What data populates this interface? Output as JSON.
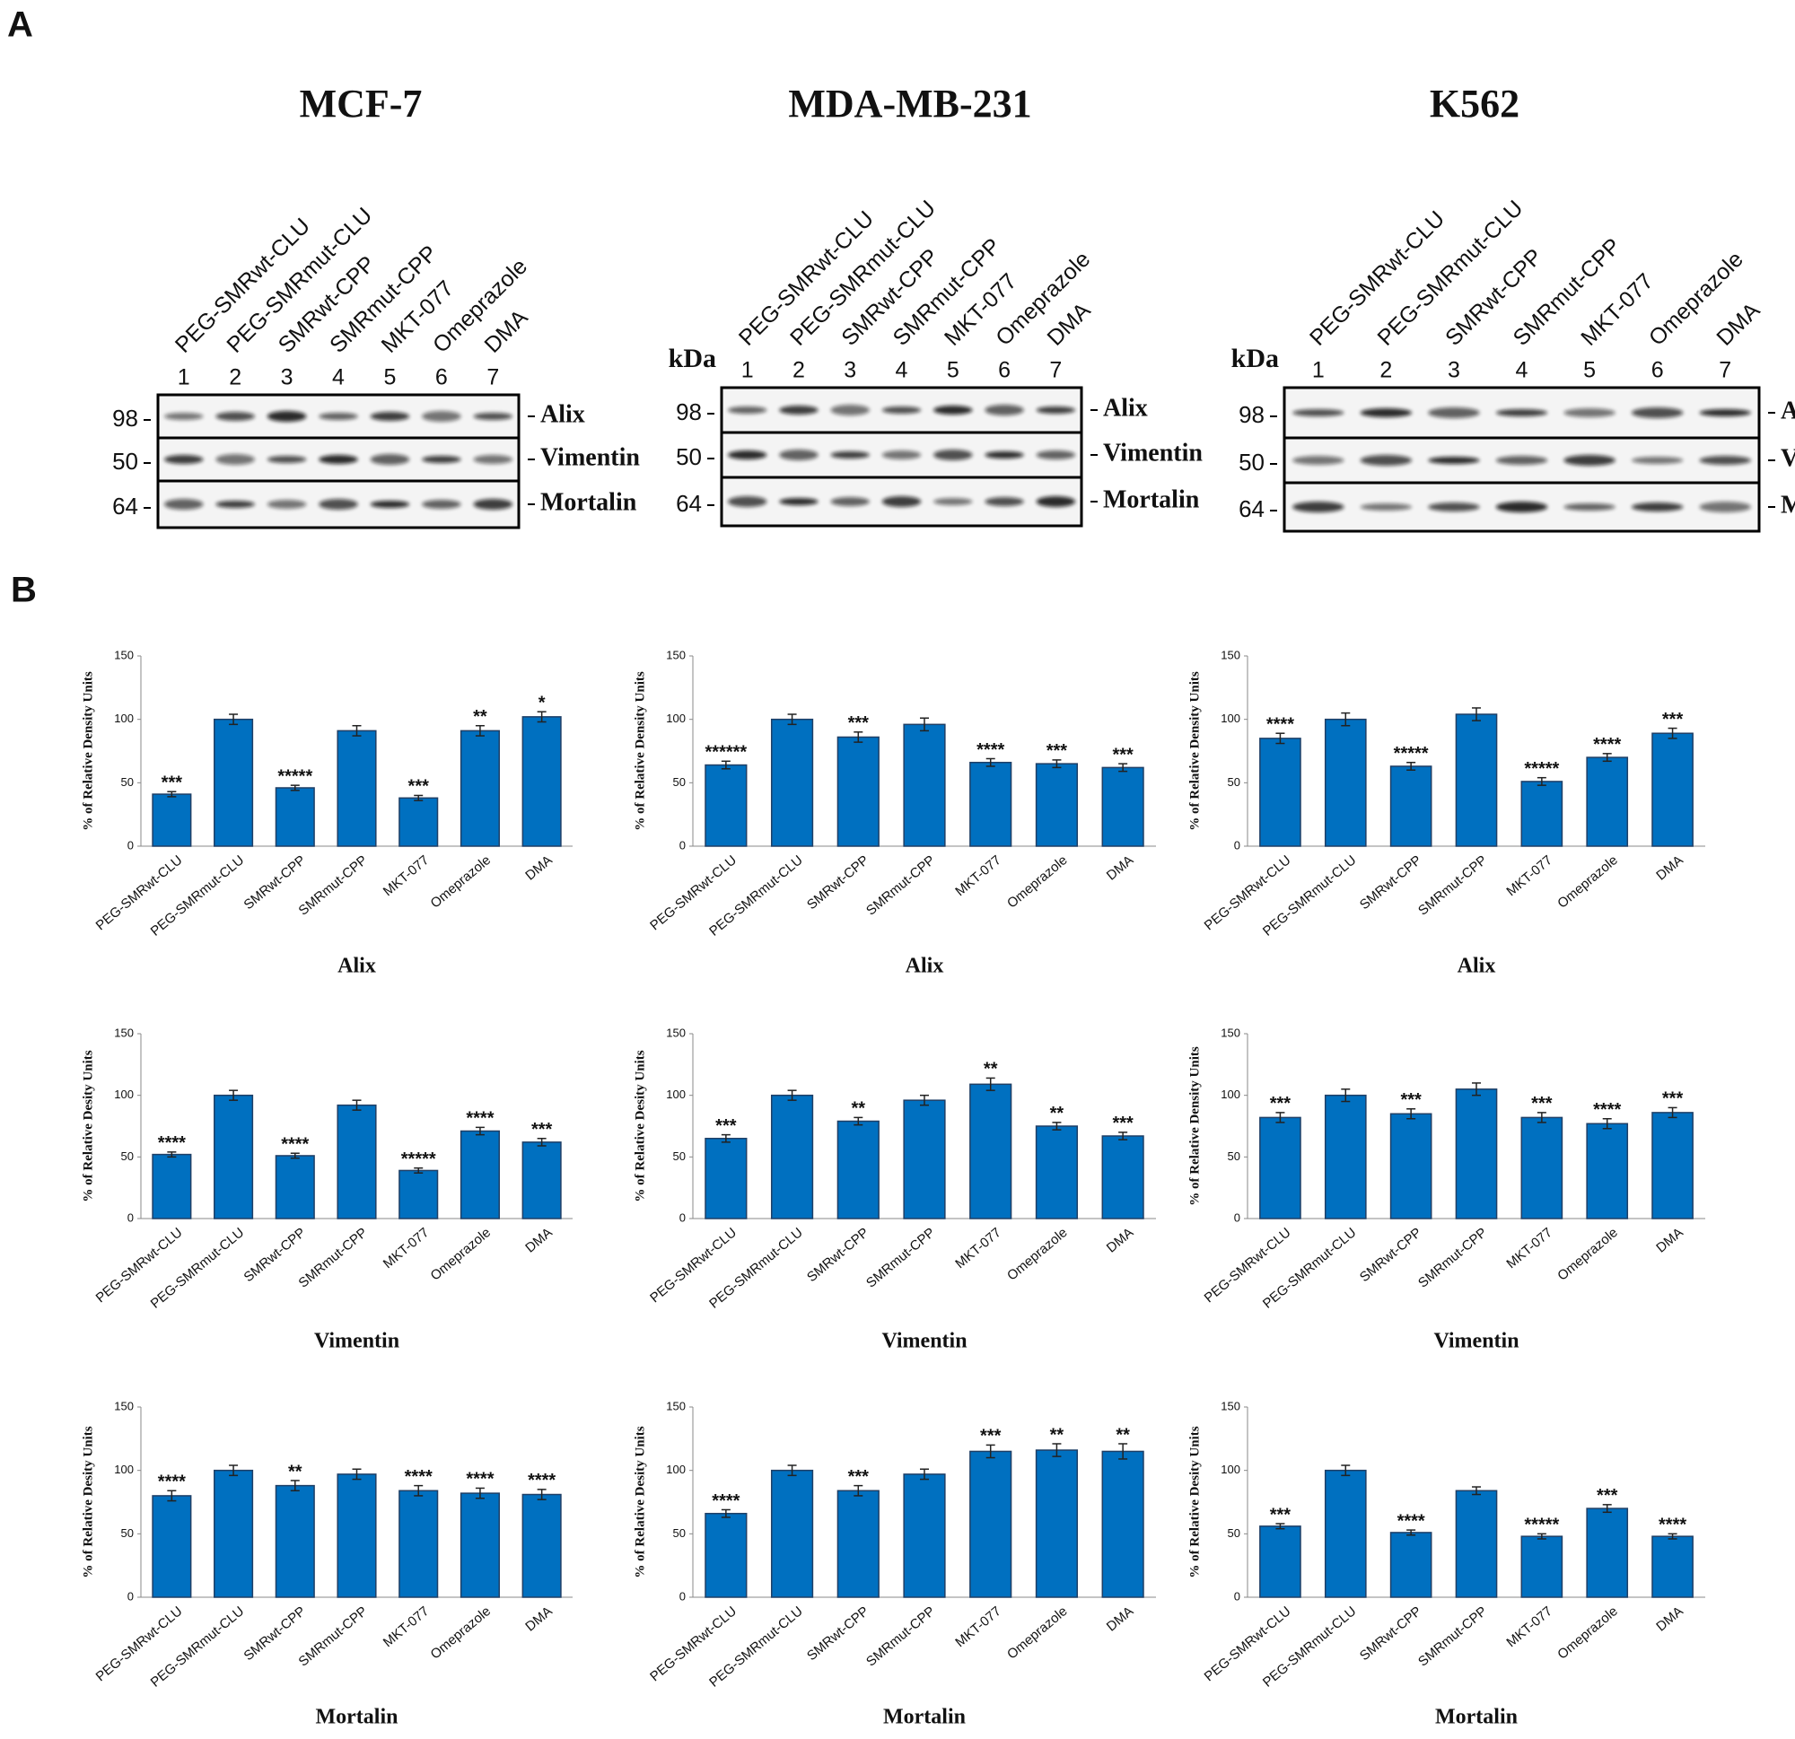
{
  "panel_a": {
    "label": "A",
    "blots": [
      {
        "title": "MCF-7",
        "lanes": [
          "PEG-SMRwt-CLU",
          "PEG-SMRmut-CLU",
          "SMRwt-CPP",
          "SMRmut-CPP",
          "MKT-077",
          "Omeprazole",
          "DMA"
        ],
        "lane_numbers": [
          1,
          2,
          3,
          4,
          5,
          6,
          7
        ],
        "proteins": [
          {
            "marker": 98,
            "name": "Alix"
          },
          {
            "marker": 50,
            "name": "Vimentin"
          },
          {
            "marker": 64,
            "name": "Mortalin"
          }
        ]
      },
      {
        "title": "MDA-MB-231",
        "kda_label": "kDa",
        "lanes": [
          "PEG-SMRwt-CLU",
          "PEG-SMRmut-CLU",
          "SMRwt-CPP",
          "SMRmut-CPP",
          "MKT-077",
          "Omeprazole",
          "DMA"
        ],
        "lane_numbers": [
          1,
          2,
          3,
          4,
          5,
          6,
          7
        ],
        "proteins": [
          {
            "marker": 98,
            "name": "Alix"
          },
          {
            "marker": 50,
            "name": "Vimentin"
          },
          {
            "marker": 64,
            "name": "Mortalin"
          }
        ]
      },
      {
        "title": "K562",
        "kda_label": "kDa",
        "lanes": [
          "PEG-SMRwt-CLU",
          "PEG-SMRmut-CLU",
          "SMRwt-CPP",
          "SMRmut-CPP",
          "MKT-077",
          "Omeprazole",
          "DMA"
        ],
        "lane_numbers": [
          1,
          2,
          3,
          4,
          5,
          6,
          7
        ],
        "proteins": [
          {
            "marker": 98,
            "name": "Alix"
          },
          {
            "marker": 50,
            "name": "Vimentin"
          },
          {
            "marker": 64,
            "name": "Mortalin"
          }
        ]
      }
    ]
  },
  "panel_b": {
    "label": "B"
  },
  "chart_data": [
    {
      "type": "bar",
      "title": "Alix",
      "ylabel": "% of Relative Density Units",
      "categories": [
        "PEG-SMRwt-CLU",
        "PEG-SMRmut-CLU",
        "SMRwt-CPP",
        "SMRmut-CPP",
        "MKT-077",
        "Omeprazole",
        "DMA"
      ],
      "values": [
        41,
        100,
        46,
        91,
        38,
        91,
        102
      ],
      "errors": [
        2,
        4,
        2,
        4,
        2,
        4,
        4
      ],
      "annotations": [
        "***",
        null,
        "*****",
        null,
        "***",
        "**",
        "*"
      ],
      "color": "#0070c0",
      "ylim": [
        0,
        150
      ],
      "yticks": [
        0,
        50,
        100,
        150
      ]
    },
    {
      "type": "bar",
      "title": "Alix",
      "ylabel": "% of Relative Density Units",
      "categories": [
        "PEG-SMRwt-CLU",
        "PEG-SMRmut-CLU",
        "SMRwt-CPP",
        "SMRmut-CPP",
        "MKT-077",
        "Omeprazole",
        "DMA"
      ],
      "values": [
        64,
        100,
        86,
        96,
        66,
        65,
        62
      ],
      "errors": [
        3,
        4,
        4,
        5,
        3,
        3,
        3
      ],
      "annotations": [
        "******",
        null,
        "***",
        null,
        "****",
        "***",
        "***"
      ],
      "color": "#0070c0",
      "ylim": [
        0,
        150
      ],
      "yticks": [
        0,
        50,
        100,
        150
      ]
    },
    {
      "type": "bar",
      "title": "Alix",
      "ylabel": "% of Relative Density Units",
      "categories": [
        "PEG-SMRwt-CLU",
        "PEG-SMRmut-CLU",
        "SMRwt-CPP",
        "SMRmut-CPP",
        "MKT-077",
        "Omeprazole",
        "DMA"
      ],
      "values": [
        85,
        100,
        63,
        104,
        51,
        70,
        89
      ],
      "errors": [
        4,
        5,
        3,
        5,
        3,
        3,
        4
      ],
      "annotations": [
        "****",
        null,
        "*****",
        null,
        "*****",
        "****",
        "***"
      ],
      "color": "#0070c0",
      "ylim": [
        0,
        150
      ],
      "yticks": [
        0,
        50,
        100,
        150
      ]
    },
    {
      "type": "bar",
      "title": "Vimentin",
      "ylabel": "% of Relative Desity Units",
      "categories": [
        "PEG-SMRwt-CLU",
        "PEG-SMRmut-CLU",
        "SMRwt-CPP",
        "SMRmut-CPP",
        "MKT-077",
        "Omeprazole",
        "DMA"
      ],
      "values": [
        52,
        100,
        51,
        92,
        39,
        71,
        62
      ],
      "errors": [
        2,
        4,
        2,
        4,
        2,
        3,
        3
      ],
      "annotations": [
        "****",
        null,
        "****",
        null,
        "*****",
        "****",
        "***"
      ],
      "color": "#0070c0",
      "ylim": [
        0,
        150
      ],
      "yticks": [
        0,
        50,
        100,
        150
      ]
    },
    {
      "type": "bar",
      "title": "Vimentin",
      "ylabel": "% of Relative Desity Units",
      "categories": [
        "PEG-SMRwt-CLU",
        "PEG-SMRmut-CLU",
        "SMRwt-CPP",
        "SMRmut-CPP",
        "MKT-077",
        "Omeprazole",
        "DMA"
      ],
      "values": [
        65,
        100,
        79,
        96,
        109,
        75,
        67
      ],
      "errors": [
        3,
        4,
        3,
        4,
        5,
        3,
        3
      ],
      "annotations": [
        "***",
        null,
        "**",
        null,
        "**",
        "**",
        "***"
      ],
      "color": "#0070c0",
      "ylim": [
        0,
        150
      ],
      "yticks": [
        0,
        50,
        100,
        150
      ]
    },
    {
      "type": "bar",
      "title": "Vimentin",
      "ylabel": "% of Relative Density Units",
      "categories": [
        "PEG-SMRwt-CLU",
        "PEG-SMRmut-CLU",
        "SMRwt-CPP",
        "SMRmut-CPP",
        "MKT-077",
        "Omeprazole",
        "DMA"
      ],
      "values": [
        82,
        100,
        85,
        105,
        82,
        77,
        86
      ],
      "errors": [
        4,
        5,
        4,
        5,
        4,
        4,
        4
      ],
      "annotations": [
        "***",
        null,
        "***",
        null,
        "***",
        "****",
        "***"
      ],
      "color": "#0070c0",
      "ylim": [
        0,
        150
      ],
      "yticks": [
        0,
        50,
        100,
        150
      ]
    },
    {
      "type": "bar",
      "title": "Mortalin",
      "ylabel": "% of Relative Desity Units",
      "categories": [
        "PEG-SMRwt-CLU",
        "PEG-SMRmut-CLU",
        "SMRwt-CPP",
        "SMRmut-CPP",
        "MKT-077",
        "Omeprazole",
        "DMA"
      ],
      "values": [
        80,
        100,
        88,
        97,
        84,
        82,
        81
      ],
      "errors": [
        4,
        4,
        4,
        4,
        4,
        4,
        4
      ],
      "annotations": [
        "****",
        null,
        "**",
        null,
        "****",
        "****",
        "****"
      ],
      "color": "#0070c0",
      "ylim": [
        0,
        150
      ],
      "yticks": [
        0,
        50,
        100,
        150
      ]
    },
    {
      "type": "bar",
      "title": "Mortalin",
      "ylabel": "% of Relative Desity Units",
      "categories": [
        "PEG-SMRwt-CLU",
        "PEG-SMRmut-CLU",
        "SMRwt-CPP",
        "SMRmut-CPP",
        "MKT-077",
        "Omeprazole",
        "DMA"
      ],
      "values": [
        66,
        100,
        84,
        97,
        115,
        116,
        115
      ],
      "errors": [
        3,
        4,
        4,
        4,
        5,
        5,
        6
      ],
      "annotations": [
        "****",
        null,
        "***",
        null,
        "***",
        "**",
        "**"
      ],
      "color": "#0070c0",
      "ylim": [
        0,
        150
      ],
      "yticks": [
        0,
        50,
        100,
        150
      ]
    },
    {
      "type": "bar",
      "title": "Mortalin",
      "ylabel": "% of Relative Desity Units",
      "categories": [
        "PEG-SMRwt-CLU",
        "PEG-SMRmut-CLU",
        "SMRwt-CPP",
        "SMRmut-CPP",
        "MKT-077",
        "Omeprazole",
        "DMA"
      ],
      "values": [
        56,
        100,
        51,
        84,
        48,
        70,
        48
      ],
      "errors": [
        2,
        4,
        2,
        3,
        2,
        3,
        2
      ],
      "annotations": [
        "***",
        null,
        "****",
        null,
        "*****",
        "***",
        "****"
      ],
      "color": "#0070c0",
      "ylim": [
        0,
        150
      ],
      "yticks": [
        0,
        50,
        100,
        150
      ]
    }
  ]
}
